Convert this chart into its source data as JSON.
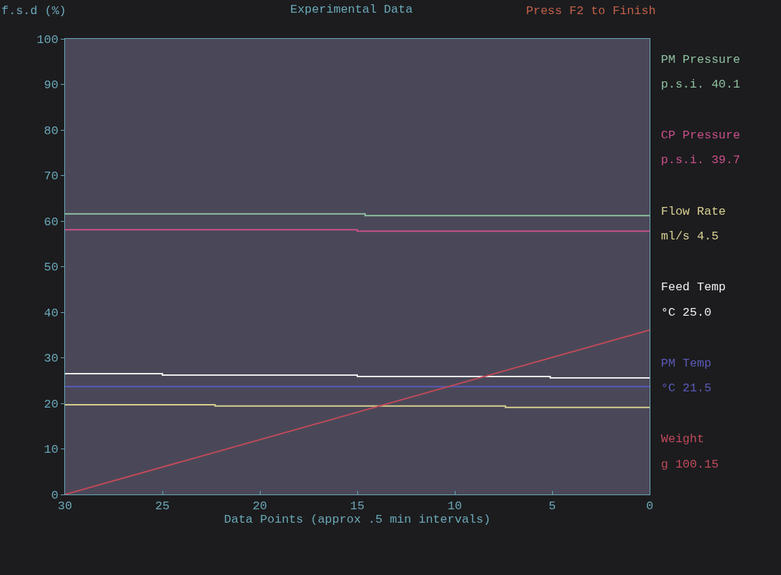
{
  "chart_data": {
    "type": "line",
    "title": "Experimental Data",
    "ylabel": "f.s.d (%)",
    "xlabel": "Data Points (approx .5 min intervals)",
    "annotations": [
      "Press F2 to Finish",
      "p.s.i. 40.1",
      "p.s.i. 39.7",
      "ml/s 4.5",
      "°C 25.0",
      "°C 21.5",
      "g 100.15"
    ],
    "xlim": [
      30,
      0
    ],
    "xticks": [
      30,
      25,
      20,
      15,
      10,
      5,
      0
    ],
    "ylim": [
      0,
      100
    ],
    "yticks": [
      0,
      10,
      20,
      30,
      40,
      50,
      60,
      70,
      80,
      90,
      100
    ],
    "grid": false,
    "legend": false,
    "series": [
      {
        "name": "PM Pressure",
        "color": "#8fc0a0",
        "x": [
          30,
          14.6,
          14.6,
          0
        ],
        "values": [
          61.6,
          61.6,
          61.2,
          61.2
        ]
      },
      {
        "name": "CP Pressure",
        "color": "#c8508a",
        "x": [
          30,
          15,
          15,
          0
        ],
        "values": [
          58.1,
          58.1,
          57.8,
          57.8
        ]
      },
      {
        "name": "Flow Rate",
        "color": "#d8d090",
        "x": [
          30,
          22.3,
          22.3,
          7.4,
          7.4,
          0
        ],
        "values": [
          19.7,
          19.7,
          19.4,
          19.4,
          19.1,
          19.1
        ]
      },
      {
        "name": "Feed Temp",
        "color": "#eeeeee",
        "x": [
          30,
          25,
          25,
          15,
          15,
          5.1,
          5.1,
          0
        ],
        "values": [
          26.5,
          26.5,
          26.2,
          26.2,
          25.9,
          25.9,
          25.6,
          25.6
        ]
      },
      {
        "name": "PM Temp",
        "color": "#5a5ab8",
        "x": [
          30,
          0
        ],
        "values": [
          23.7,
          23.7
        ]
      },
      {
        "name": "Weight",
        "color": "#c04a5a",
        "x": [
          30,
          0
        ],
        "values": [
          0,
          36.1
        ]
      }
    ]
  }
}
